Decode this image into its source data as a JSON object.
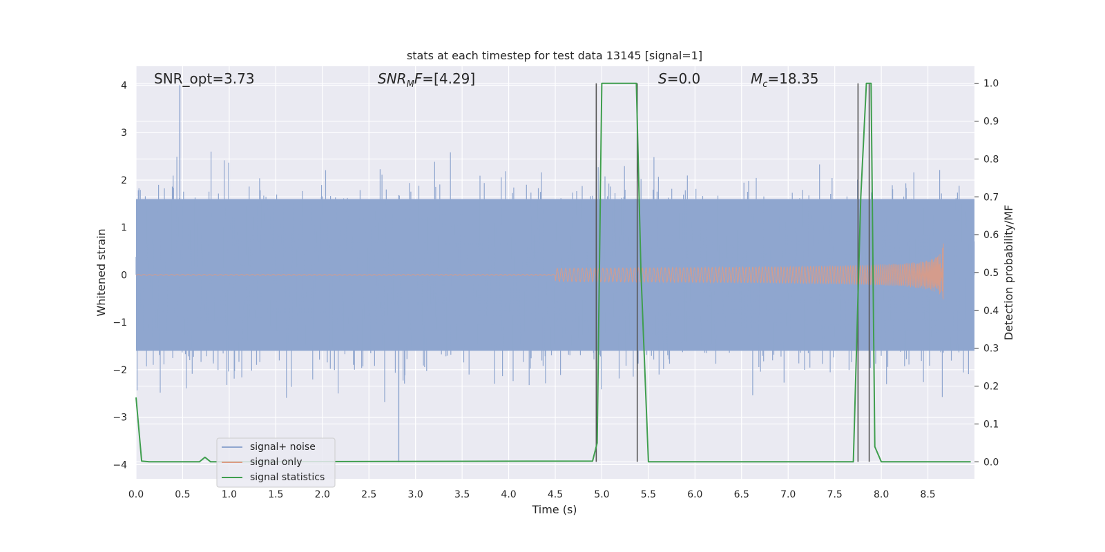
{
  "chart_data": {
    "type": "line",
    "title": "stats at each timestep for test data 13145 [signal=1]",
    "xlabel": "Time (s)",
    "ylabel": "Whitened strain",
    "y2label": "Detection probability/MF",
    "xlim": [
      0,
      9
    ],
    "ylim": [
      -4.3,
      4.4
    ],
    "y2lim": [
      -0.045,
      1.045
    ],
    "xticks": [
      0.0,
      0.5,
      1.0,
      1.5,
      2.0,
      2.5,
      3.0,
      3.5,
      4.0,
      4.5,
      5.0,
      5.5,
      6.0,
      6.5,
      7.0,
      7.5,
      8.0,
      8.5
    ],
    "xtick_labels": [
      "0.0",
      "0.5",
      "1.0",
      "1.5",
      "2.0",
      "2.5",
      "3.0",
      "3.5",
      "4.0",
      "4.5",
      "5.0",
      "5.5",
      "6.0",
      "6.5",
      "7.0",
      "7.5",
      "8.0",
      "8.5"
    ],
    "yticks": [
      -4,
      -3,
      -2,
      -1,
      0,
      1,
      2,
      3,
      4
    ],
    "ytick_labels": [
      "−4",
      "−3",
      "−2",
      "−1",
      "0",
      "1",
      "2",
      "3",
      "4"
    ],
    "y2ticks": [
      0.0,
      0.1,
      0.2,
      0.3,
      0.4,
      0.5,
      0.6,
      0.7,
      0.8,
      0.9,
      1.0
    ],
    "y2tick_labels": [
      "0.0",
      "0.1",
      "0.2",
      "0.3",
      "0.4",
      "0.5",
      "0.6",
      "0.7",
      "0.8",
      "0.9",
      "1.0"
    ],
    "grid": true,
    "legend_position": "lower-left",
    "annotations": {
      "snr_opt": "SNR_opt=3.73",
      "snr_mf_main": "SNR",
      "snr_mf_sub": "M",
      "snr_mf_rest": "F=[4.29]",
      "s_main": "S",
      "s_rest": "=0.0",
      "mc_main": "M",
      "mc_sub": "c",
      "mc_rest": "=18.35"
    },
    "series": [
      {
        "name": "signal+ noise",
        "color": "#8fa6cf",
        "kind": "noise",
        "x_range": [
          0,
          9
        ],
        "typical_amplitude": 1.6,
        "peak_max": 4.0,
        "peak_min": -3.95
      },
      {
        "name": "signal only",
        "color": "#dd9b84",
        "kind": "chirp",
        "x_range": [
          0,
          8.67
        ],
        "peak_amplitude": 0.8
      },
      {
        "name": "signal statistics",
        "color": "#3f9e4e",
        "axis": "right",
        "x": [
          0.0,
          0.06,
          0.14,
          0.68,
          0.74,
          0.8,
          0.87,
          4.9,
          4.95,
          5.0,
          5.37,
          5.42,
          5.5,
          7.7,
          7.78,
          7.84,
          7.89,
          7.93,
          8.0,
          8.96
        ],
        "y": [
          0.17,
          0.002,
          0.0,
          0.0,
          0.012,
          0.0,
          0.0,
          0.002,
          0.05,
          1.0,
          1.0,
          0.5,
          0.0,
          0.0,
          0.7,
          1.0,
          1.0,
          0.04,
          0.0,
          0.0
        ]
      }
    ],
    "vertical_markers": [
      4.94,
      5.38,
      7.75,
      7.87
    ],
    "marker_color": "#555555"
  }
}
